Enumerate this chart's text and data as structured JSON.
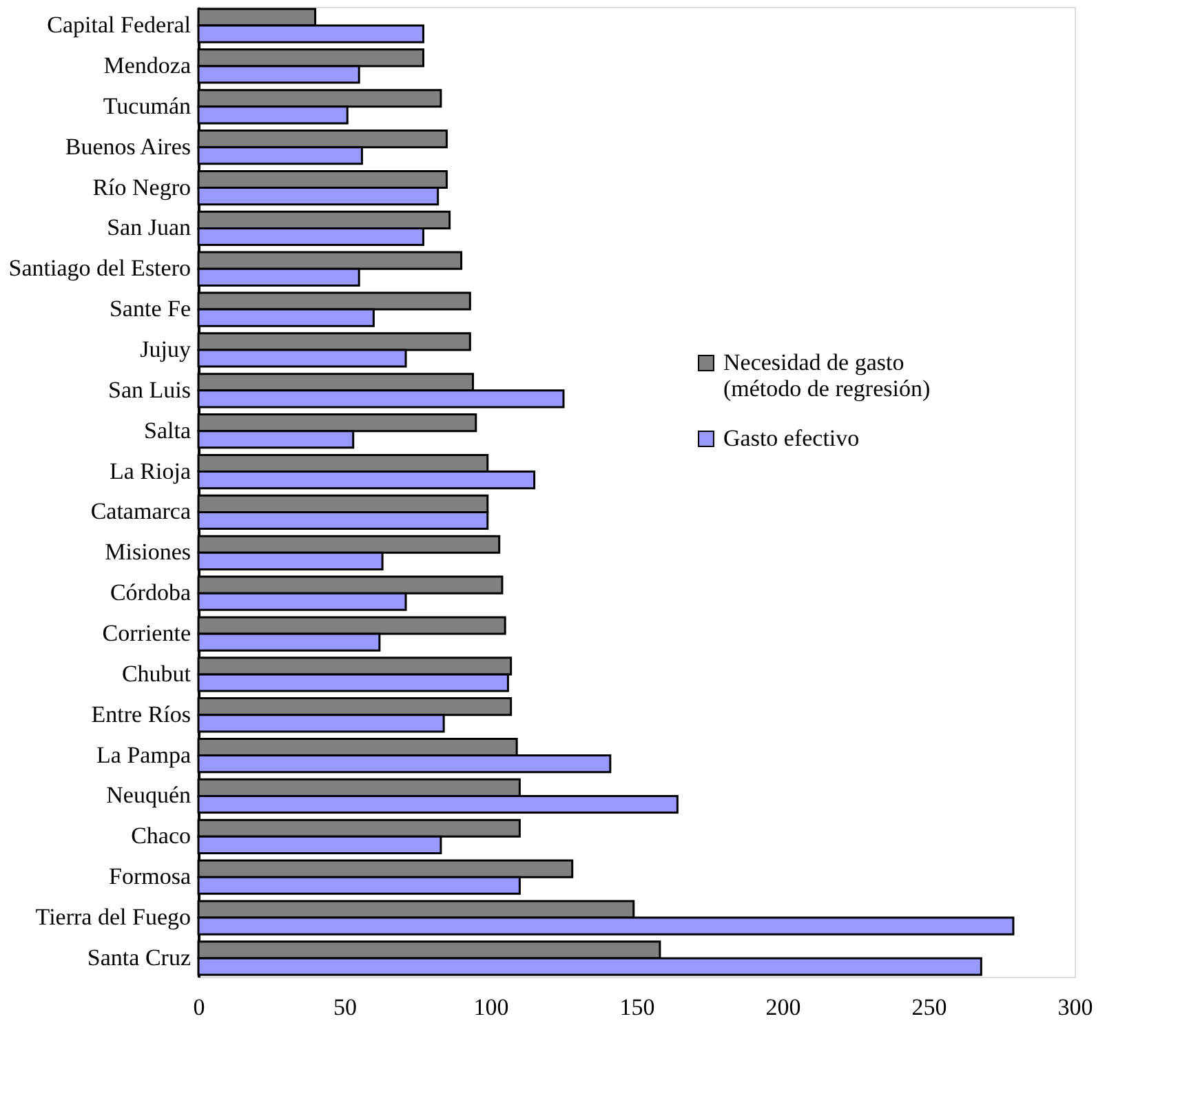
{
  "chart_data": {
    "type": "bar",
    "orientation": "horizontal",
    "categories": [
      "Capital Federal",
      "Mendoza",
      "Tucumán",
      "Buenos Aires",
      "Río Negro",
      "San Juan",
      "Santiago del Estero",
      "Sante Fe",
      "Jujuy",
      "San Luis",
      "Salta",
      "La Rioja",
      "Catamarca",
      "Misiones",
      "Córdoba",
      "Corriente",
      "Chubut",
      "Entre Ríos",
      "La Pampa",
      "Neuquén",
      "Chaco",
      "Formosa",
      "Tierra del Fuego",
      "Santa Cruz"
    ],
    "series": [
      {
        "name": "Necesidad de gasto (método de regresión)",
        "color": "#808080",
        "values": [
          40,
          77,
          83,
          85,
          85,
          86,
          90,
          93,
          93,
          94,
          95,
          99,
          99,
          103,
          104,
          105,
          107,
          107,
          109,
          110,
          110,
          128,
          149,
          158
        ]
      },
      {
        "name": "Gasto efectivo",
        "color": "#9999ff",
        "values": [
          77,
          55,
          51,
          56,
          82,
          77,
          55,
          60,
          71,
          125,
          53,
          115,
          99,
          63,
          71,
          62,
          106,
          84,
          141,
          164,
          83,
          110,
          279,
          268
        ]
      }
    ],
    "xlim": [
      0,
      300
    ],
    "xticks": [
      0,
      50,
      100,
      150,
      200,
      250,
      300
    ],
    "grid": false,
    "legend": "right"
  }
}
